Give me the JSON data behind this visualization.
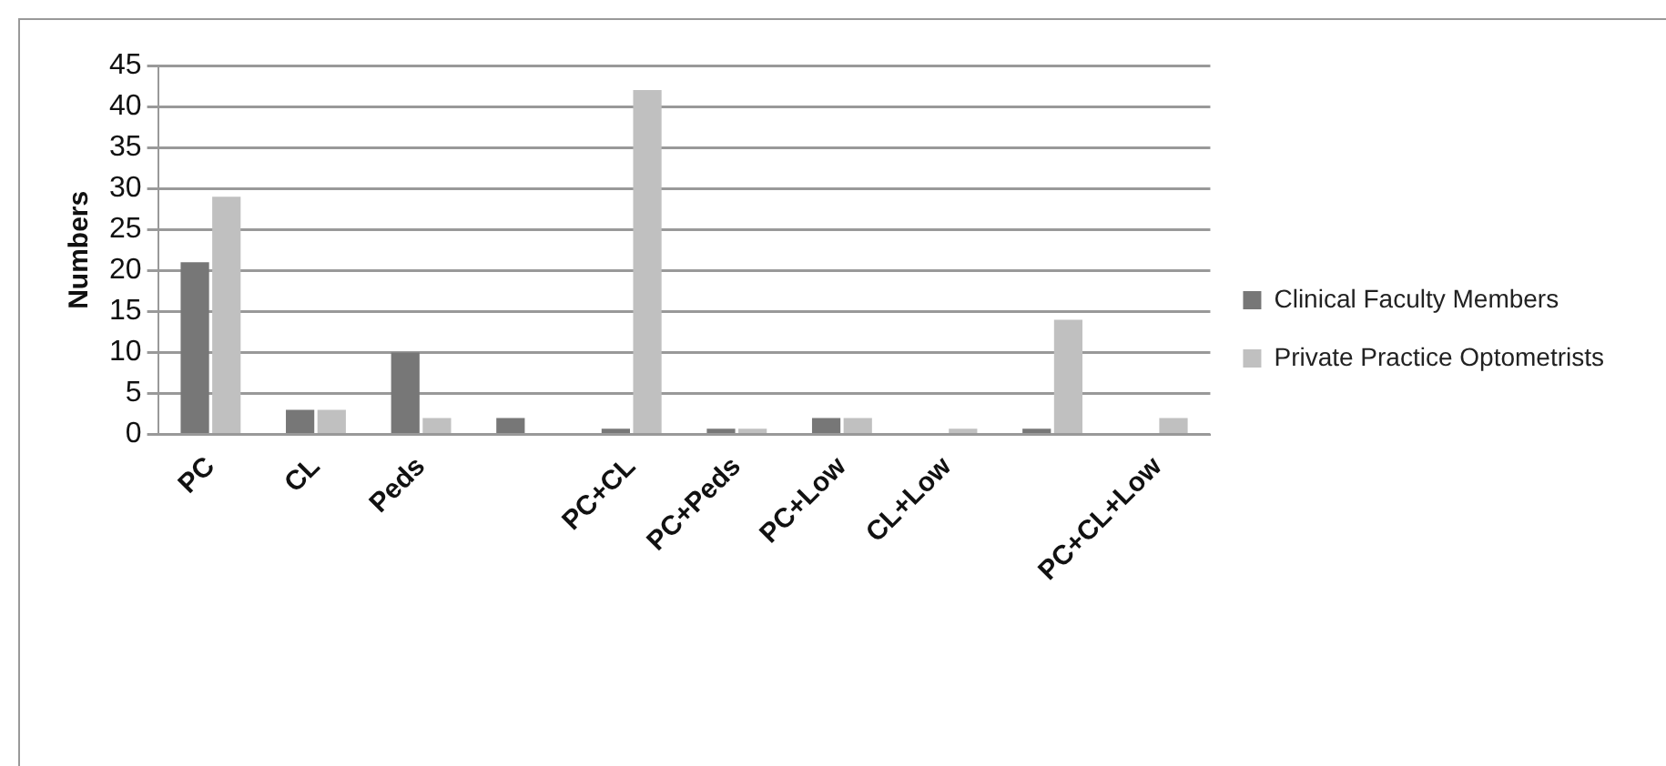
{
  "chart_data": {
    "type": "bar",
    "ylabel": "Numbers",
    "categories": [
      "PC",
      "CL",
      "Peds",
      null,
      "PC+CL",
      "PC+Peds",
      "PC+Low",
      "CL+Low",
      null,
      "PC+CL+Low"
    ],
    "series": [
      {
        "name": "Clinical Faculty Members",
        "color": "#777777",
        "values": [
          21,
          3,
          10,
          2,
          0.7,
          0.7,
          2,
          0,
          0.7,
          0
        ]
      },
      {
        "name": "Private Practice Optometrists",
        "color": "#c0c0c0",
        "values": [
          29,
          3,
          2,
          0,
          42,
          0.7,
          2,
          0.7,
          14,
          2
        ]
      }
    ],
    "ylim": [
      0,
      45
    ],
    "yticks": [
      0,
      5,
      10,
      15,
      20,
      25,
      30,
      35,
      40,
      45
    ],
    "grid": "y",
    "legend": "right"
  }
}
